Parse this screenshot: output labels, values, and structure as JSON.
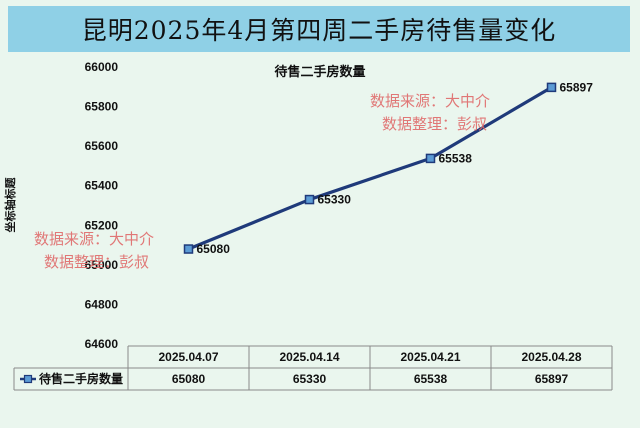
{
  "title": "昆明2025年4月第四周二手房待售量变化",
  "watermarks": [
    {
      "line1": "数据来源：大中介",
      "line2": "数据整理：彭叔"
    },
    {
      "line1": "数据来源：大中介",
      "line2": "数据整理：彭叔"
    }
  ],
  "colors": {
    "title_bg": "#8fd0e6",
    "background": "#eaf6ee",
    "series_line": "#1f3a7a",
    "watermark": "#e06a6a"
  },
  "chart_data": {
    "type": "line",
    "title": "待售二手房数量",
    "ylabel": "坐标轴标题",
    "xlabel": "",
    "categories": [
      "2025.04.07",
      "2025.04.14",
      "2025.04.21",
      "2025.04.28"
    ],
    "series": [
      {
        "name": "待售二手房数量",
        "values": [
          65080,
          65330,
          65538,
          65897
        ]
      }
    ],
    "ylim": [
      64600,
      66000
    ],
    "yticks": [
      64600,
      64800,
      65000,
      65200,
      65400,
      65600,
      65800,
      66000
    ],
    "data_labels": [
      "65080",
      "65330",
      "65538",
      "65897"
    ],
    "legend": "data-table",
    "data_table": true,
    "grid": false
  }
}
